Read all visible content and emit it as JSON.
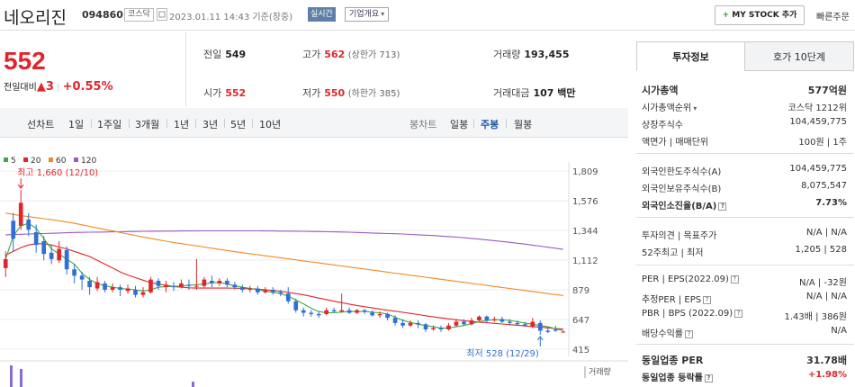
{
  "header": {
    "title": "네오리진",
    "code": "094860",
    "market": "코스닥",
    "datetime": "2023.01.11 14:43 기준(장중)",
    "realtime": "실시간",
    "corp_info": "기업개요",
    "mystock_plus": "+",
    "mystock": "MY STOCK 추가",
    "quick_order": "빠른주문"
  },
  "quote": {
    "price": "552",
    "diff_label": "전일대비",
    "diff_arrow": "▲",
    "diff_value": "3",
    "diff_pct": "+0.55%",
    "prev_close_label": "전일",
    "prev_close": "549",
    "high_label": "고가",
    "high": "562",
    "upper_limit": "(상한가 713)",
    "volume_label": "거래량",
    "volume": "193,455",
    "open_label": "시가",
    "open": "552",
    "low_label": "저가",
    "low": "550",
    "lower_limit": "(하한가 385)",
    "amount_label": "거래대금",
    "amount": "107 백만"
  },
  "periods": {
    "line_label": "선차트",
    "line_items": [
      "1일",
      "1주일",
      "3개월",
      "1년",
      "3년",
      "5년",
      "10년"
    ],
    "candle_label": "봉차트",
    "candle_items": [
      "일봉",
      "주봉",
      "월봉"
    ],
    "candle_selected": "주봉"
  },
  "chart_data": {
    "type": "candlestick",
    "legend": [
      {
        "name": "5",
        "color": "#3caa3c"
      },
      {
        "name": "20",
        "color": "#e0262d"
      },
      {
        "name": "60",
        "color": "#f08a24"
      },
      {
        "name": "120",
        "color": "#9b59c6"
      }
    ],
    "y_ticks": [
      1809,
      1576,
      1344,
      1112,
      879,
      647,
      415
    ],
    "ylim": [
      415,
      1809
    ],
    "high_annotation": "최고 1,660 (12/10)",
    "low_annotation": "최저 528 (12/29)",
    "volume_label": "거래량",
    "up_color": "#e0262d",
    "down_color": "#2f6fd6",
    "candles": [
      {
        "o": 1050,
        "c": 1120,
        "h": 1180,
        "l": 980
      },
      {
        "o": 1420,
        "c": 1280,
        "h": 1480,
        "l": 1180
      },
      {
        "o": 1380,
        "c": 1560,
        "h": 1660,
        "l": 1350
      },
      {
        "o": 1430,
        "c": 1350,
        "h": 1480,
        "l": 1300
      },
      {
        "o": 1330,
        "c": 1230,
        "h": 1390,
        "l": 1170
      },
      {
        "o": 1260,
        "c": 1160,
        "h": 1300,
        "l": 1110
      },
      {
        "o": 1170,
        "c": 1120,
        "h": 1230,
        "l": 1080
      },
      {
        "o": 1110,
        "c": 1200,
        "h": 1260,
        "l": 1090
      },
      {
        "o": 1190,
        "c": 1040,
        "h": 1220,
        "l": 1000
      },
      {
        "o": 1040,
        "c": 990,
        "h": 1080,
        "l": 930
      },
      {
        "o": 990,
        "c": 960,
        "h": 1020,
        "l": 880
      },
      {
        "o": 950,
        "c": 900,
        "h": 980,
        "l": 840
      },
      {
        "o": 890,
        "c": 940,
        "h": 980,
        "l": 870
      },
      {
        "o": 930,
        "c": 880,
        "h": 950,
        "l": 860
      },
      {
        "o": 880,
        "c": 900,
        "h": 930,
        "l": 860
      },
      {
        "o": 900,
        "c": 880,
        "h": 920,
        "l": 830
      },
      {
        "o": 870,
        "c": 890,
        "h": 920,
        "l": 850
      },
      {
        "o": 880,
        "c": 840,
        "h": 910,
        "l": 820
      },
      {
        "o": 840,
        "c": 860,
        "h": 900,
        "l": 820
      },
      {
        "o": 860,
        "c": 960,
        "h": 980,
        "l": 850
      },
      {
        "o": 950,
        "c": 910,
        "h": 970,
        "l": 880
      },
      {
        "o": 900,
        "c": 920,
        "h": 950,
        "l": 860
      },
      {
        "o": 910,
        "c": 900,
        "h": 940,
        "l": 870
      },
      {
        "o": 900,
        "c": 930,
        "h": 960,
        "l": 890
      },
      {
        "o": 920,
        "c": 910,
        "h": 960,
        "l": 880
      },
      {
        "o": 905,
        "c": 910,
        "h": 1120,
        "l": 880
      },
      {
        "o": 910,
        "c": 960,
        "h": 980,
        "l": 890
      },
      {
        "o": 950,
        "c": 930,
        "h": 990,
        "l": 900
      },
      {
        "o": 930,
        "c": 950,
        "h": 970,
        "l": 910
      },
      {
        "o": 950,
        "c": 920,
        "h": 970,
        "l": 900
      },
      {
        "o": 920,
        "c": 900,
        "h": 940,
        "l": 880
      },
      {
        "o": 900,
        "c": 880,
        "h": 920,
        "l": 860
      },
      {
        "o": 880,
        "c": 890,
        "h": 910,
        "l": 860
      },
      {
        "o": 890,
        "c": 860,
        "h": 910,
        "l": 840
      },
      {
        "o": 860,
        "c": 880,
        "h": 900,
        "l": 850
      },
      {
        "o": 880,
        "c": 860,
        "h": 900,
        "l": 840
      },
      {
        "o": 860,
        "c": 850,
        "h": 880,
        "l": 830
      },
      {
        "o": 850,
        "c": 790,
        "h": 900,
        "l": 770
      },
      {
        "o": 790,
        "c": 720,
        "h": 810,
        "l": 700
      },
      {
        "o": 720,
        "c": 700,
        "h": 740,
        "l": 670
      },
      {
        "o": 700,
        "c": 690,
        "h": 720,
        "l": 670
      },
      {
        "o": 690,
        "c": 680,
        "h": 710,
        "l": 660
      },
      {
        "o": 690,
        "c": 720,
        "h": 740,
        "l": 680
      },
      {
        "o": 720,
        "c": 710,
        "h": 740,
        "l": 700
      },
      {
        "o": 710,
        "c": 720,
        "h": 850,
        "l": 700
      },
      {
        "o": 720,
        "c": 700,
        "h": 740,
        "l": 690
      },
      {
        "o": 700,
        "c": 720,
        "h": 730,
        "l": 690
      },
      {
        "o": 720,
        "c": 710,
        "h": 730,
        "l": 690
      },
      {
        "o": 700,
        "c": 680,
        "h": 720,
        "l": 670
      },
      {
        "o": 680,
        "c": 690,
        "h": 710,
        "l": 660
      },
      {
        "o": 690,
        "c": 660,
        "h": 700,
        "l": 640
      },
      {
        "o": 660,
        "c": 620,
        "h": 680,
        "l": 600
      },
      {
        "o": 620,
        "c": 600,
        "h": 650,
        "l": 580
      },
      {
        "o": 600,
        "c": 620,
        "h": 640,
        "l": 590
      },
      {
        "o": 620,
        "c": 610,
        "h": 640,
        "l": 580
      },
      {
        "o": 610,
        "c": 570,
        "h": 620,
        "l": 550
      },
      {
        "o": 570,
        "c": 580,
        "h": 600,
        "l": 560
      },
      {
        "o": 580,
        "c": 570,
        "h": 600,
        "l": 550
      },
      {
        "o": 570,
        "c": 600,
        "h": 620,
        "l": 560
      },
      {
        "o": 600,
        "c": 630,
        "h": 650,
        "l": 590
      },
      {
        "o": 630,
        "c": 610,
        "h": 650,
        "l": 600
      },
      {
        "o": 610,
        "c": 640,
        "h": 660,
        "l": 600
      },
      {
        "o": 640,
        "c": 670,
        "h": 680,
        "l": 630
      },
      {
        "o": 670,
        "c": 640,
        "h": 680,
        "l": 620
      },
      {
        "o": 640,
        "c": 650,
        "h": 670,
        "l": 630
      },
      {
        "o": 650,
        "c": 630,
        "h": 670,
        "l": 620
      },
      {
        "o": 630,
        "c": 620,
        "h": 650,
        "l": 600
      },
      {
        "o": 620,
        "c": 610,
        "h": 640,
        "l": 600
      },
      {
        "o": 610,
        "c": 600,
        "h": 630,
        "l": 590
      },
      {
        "o": 590,
        "c": 630,
        "h": 660,
        "l": 580
      },
      {
        "o": 620,
        "c": 560,
        "h": 640,
        "l": 528
      },
      {
        "o": 560,
        "c": 550,
        "h": 590,
        "l": 540
      },
      {
        "o": 570,
        "c": 560,
        "h": 600,
        "l": 550
      },
      {
        "o": 549,
        "c": 552,
        "h": 562,
        "l": 550
      }
    ],
    "ma5": [
      1120,
      1300,
      1380,
      1400,
      1360,
      1280,
      1200,
      1160,
      1120,
      1080,
      1010,
      960,
      930,
      910,
      900,
      890,
      885,
      880,
      870,
      880,
      900,
      905,
      905,
      910,
      915,
      920,
      925,
      935,
      935,
      925,
      910,
      900,
      890,
      880,
      870,
      860,
      850,
      830,
      800,
      770,
      735,
      710,
      700,
      700,
      705,
      710,
      710,
      710,
      705,
      700,
      690,
      665,
      640,
      625,
      610,
      600,
      590,
      580,
      580,
      590,
      600,
      615,
      630,
      640,
      645,
      645,
      640,
      630,
      620,
      610,
      600,
      590,
      575,
      560
    ],
    "ma20": [
      1150,
      1180,
      1210,
      1230,
      1240,
      1240,
      1230,
      1215,
      1200,
      1180,
      1160,
      1140,
      1110,
      1080,
      1050,
      1020,
      995,
      975,
      955,
      935,
      925,
      915,
      905,
      900,
      895,
      893,
      893,
      893,
      893,
      893,
      892,
      890,
      888,
      885,
      880,
      875,
      868,
      860,
      850,
      840,
      828,
      815,
      803,
      790,
      779,
      768,
      757,
      747,
      738,
      729,
      720,
      712,
      704,
      695,
      686,
      677,
      668,
      660,
      652,
      645,
      638,
      632,
      627,
      622,
      617,
      612,
      607,
      602,
      597,
      592,
      587,
      582,
      577,
      573
    ],
    "ma60": [
      1480,
      1470,
      1460,
      1452,
      1444,
      1436,
      1428,
      1420,
      1410,
      1400,
      1388,
      1376,
      1364,
      1352,
      1340,
      1328,
      1316,
      1304,
      1293,
      1282,
      1271,
      1260,
      1250,
      1241,
      1232,
      1223,
      1214,
      1205,
      1196,
      1187,
      1178,
      1170,
      1162,
      1154,
      1146,
      1138,
      1130,
      1122,
      1114,
      1106,
      1098,
      1090,
      1082,
      1074,
      1066,
      1058,
      1050,
      1042,
      1034,
      1026,
      1018,
      1010,
      1002,
      994,
      986,
      978,
      970,
      962,
      954,
      946,
      938,
      930,
      922,
      914,
      906,
      898,
      890,
      882,
      874,
      866,
      858,
      850,
      842,
      835
    ],
    "ma120": [
      1310,
      1312,
      1314,
      1316,
      1318,
      1320,
      1322,
      1324,
      1326,
      1328,
      1329,
      1330,
      1331,
      1332,
      1333,
      1334,
      1335,
      1336,
      1337,
      1338,
      1338,
      1339,
      1339,
      1340,
      1340,
      1340,
      1341,
      1341,
      1341,
      1341,
      1341,
      1341,
      1341,
      1341,
      1340,
      1340,
      1339,
      1339,
      1338,
      1337,
      1336,
      1335,
      1334,
      1333,
      1332,
      1330,
      1328,
      1326,
      1324,
      1322,
      1320,
      1318,
      1316,
      1313,
      1310,
      1307,
      1304,
      1300,
      1296,
      1292,
      1287,
      1282,
      1276,
      1270,
      1264,
      1258,
      1251,
      1244,
      1237,
      1229,
      1221,
      1213,
      1205,
      1196
    ]
  },
  "invest": {
    "tab_info": "투자정보",
    "tab_hoga": "호가 10단계",
    "market_cap_label": "시가총액",
    "market_cap": "577억원",
    "cap_rank_label": "시가총액순위",
    "cap_rank": "코스닥 1212위",
    "shares_label": "상장주식수",
    "shares": "104,459,775",
    "par_label": "액면가 | 매매단위",
    "par": "100원 | 1주",
    "foreign_limit_label": "외국인한도주식수(A)",
    "foreign_limit": "104,459,775",
    "foreign_own_label": "외국인보유주식수(B)",
    "foreign_own": "8,075,547",
    "foreign_ratio_label": "외국인소진율(B/A)",
    "foreign_ratio": "7.73%",
    "opinion_label": "투자의견 | 목표주가",
    "opinion": "N/A | N/A",
    "week52_label": "52주최고 | 최저",
    "week52": "1,205 | 528",
    "per_label": "PER | EPS(2022.09)",
    "per": "N/A | -32원",
    "est_per_label": "추정PER | EPS",
    "est_per": "N/A | N/A",
    "pbr_label": "PBR | BPS (2022.09)",
    "pbr": "1.43배 | 386원",
    "div_label": "배당수익률",
    "div": "N/A",
    "ind_per_label": "동일업종 PER",
    "ind_per": "31.78배",
    "ind_rate_label": "동일업종 등락률",
    "ind_rate": "+1.98%"
  }
}
